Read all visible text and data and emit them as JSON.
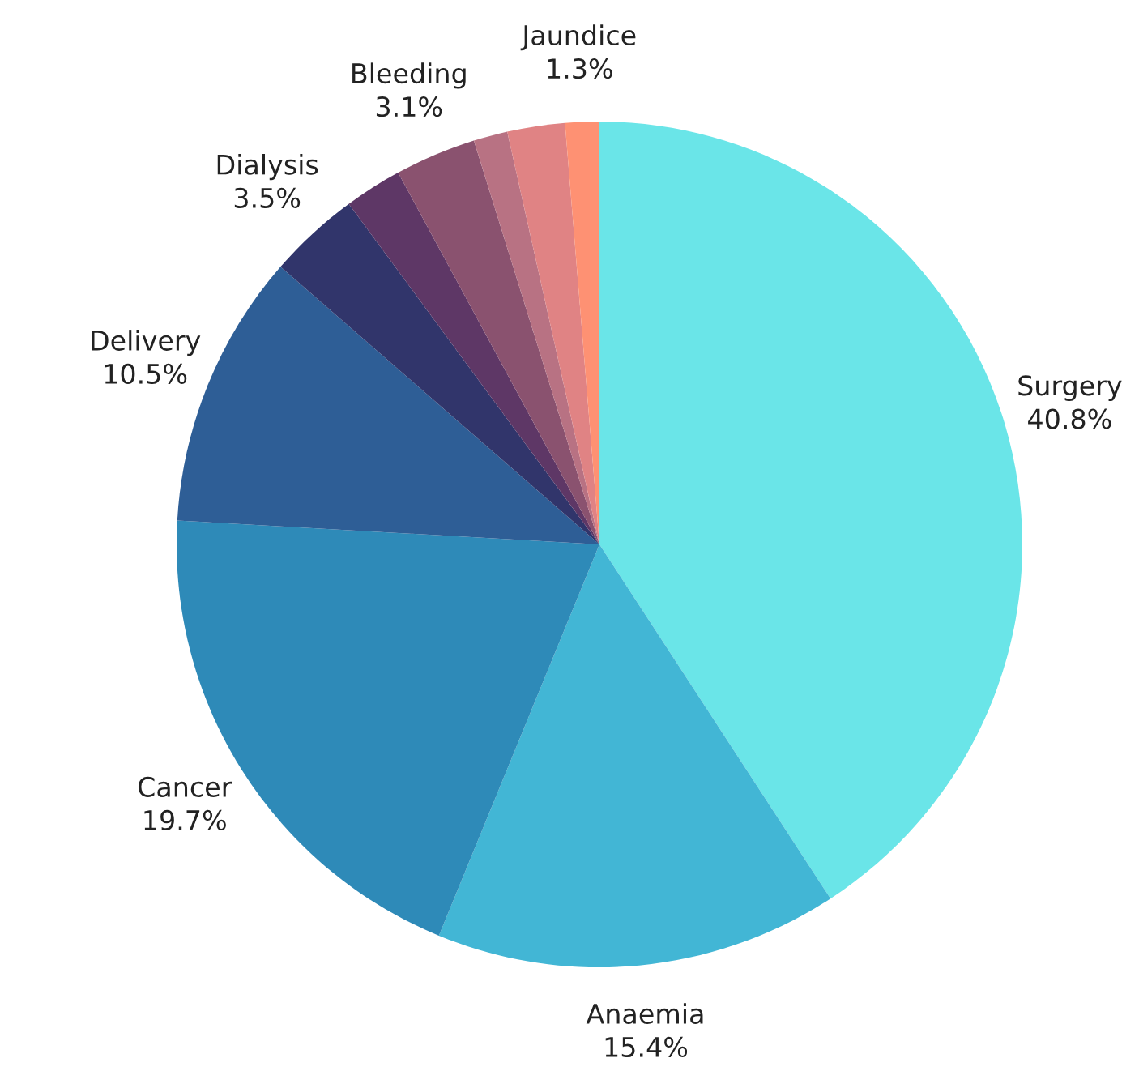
{
  "chart_data": {
    "type": "pie",
    "categories": [
      "Surgery",
      "Anaemia",
      "Cancer",
      "Delivery",
      "Dialysis",
      null,
      "Bleeding",
      null,
      null,
      "Jaundice"
    ],
    "values": [
      40.8,
      15.4,
      19.7,
      10.5,
      3.5,
      2.2,
      3.1,
      1.3,
      2.2,
      1.3
    ],
    "value_labels": [
      "40.8%",
      "15.4%",
      "19.7%",
      "10.5%",
      "3.5%",
      null,
      "3.1%",
      null,
      null,
      "1.3%"
    ],
    "colors": [
      "#6ae5e8",
      "#42b6d5",
      "#2e8ab8",
      "#2e5e96",
      "#31356b",
      "#5e3766",
      "#8a526f",
      "#b87283",
      "#e08384",
      "#fe9173"
    ]
  }
}
